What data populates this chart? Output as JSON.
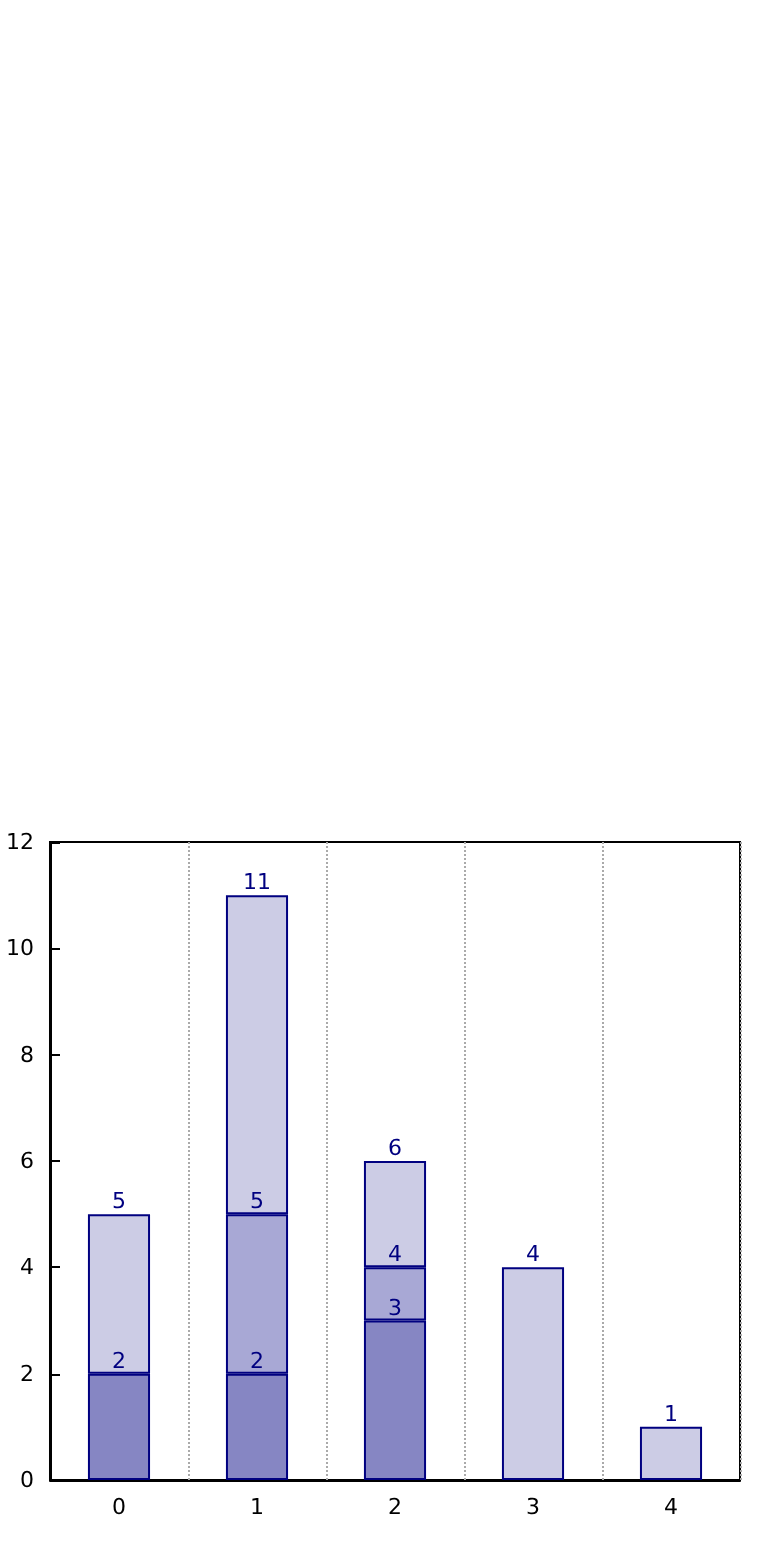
{
  "chart_data": {
    "type": "bar",
    "stacked": true,
    "categories": [
      "0",
      "1",
      "2",
      "3",
      "4"
    ],
    "series": [
      {
        "color": "#8686c3",
        "values": [
          2,
          2,
          3,
          null,
          null
        ],
        "value_labels": [
          "2",
          "2",
          "3",
          null,
          null
        ]
      },
      {
        "color": "#a8a8d5",
        "values": [
          null,
          3,
          1,
          null,
          null
        ]
      },
      {
        "color": "#ccccE5",
        "values": [
          3,
          6,
          2,
          4,
          1
        ]
      }
    ],
    "totals": [
      "5",
      "11",
      "6",
      "4",
      "1"
    ],
    "annotations": [
      {
        "text": "5",
        "x": "1",
        "y": 5
      },
      {
        "text": "4",
        "x": "2",
        "y": 4
      }
    ],
    "ylim": [
      0,
      12
    ],
    "yticks": [
      0,
      2,
      4,
      6,
      8,
      10,
      12
    ],
    "grid": "x"
  }
}
